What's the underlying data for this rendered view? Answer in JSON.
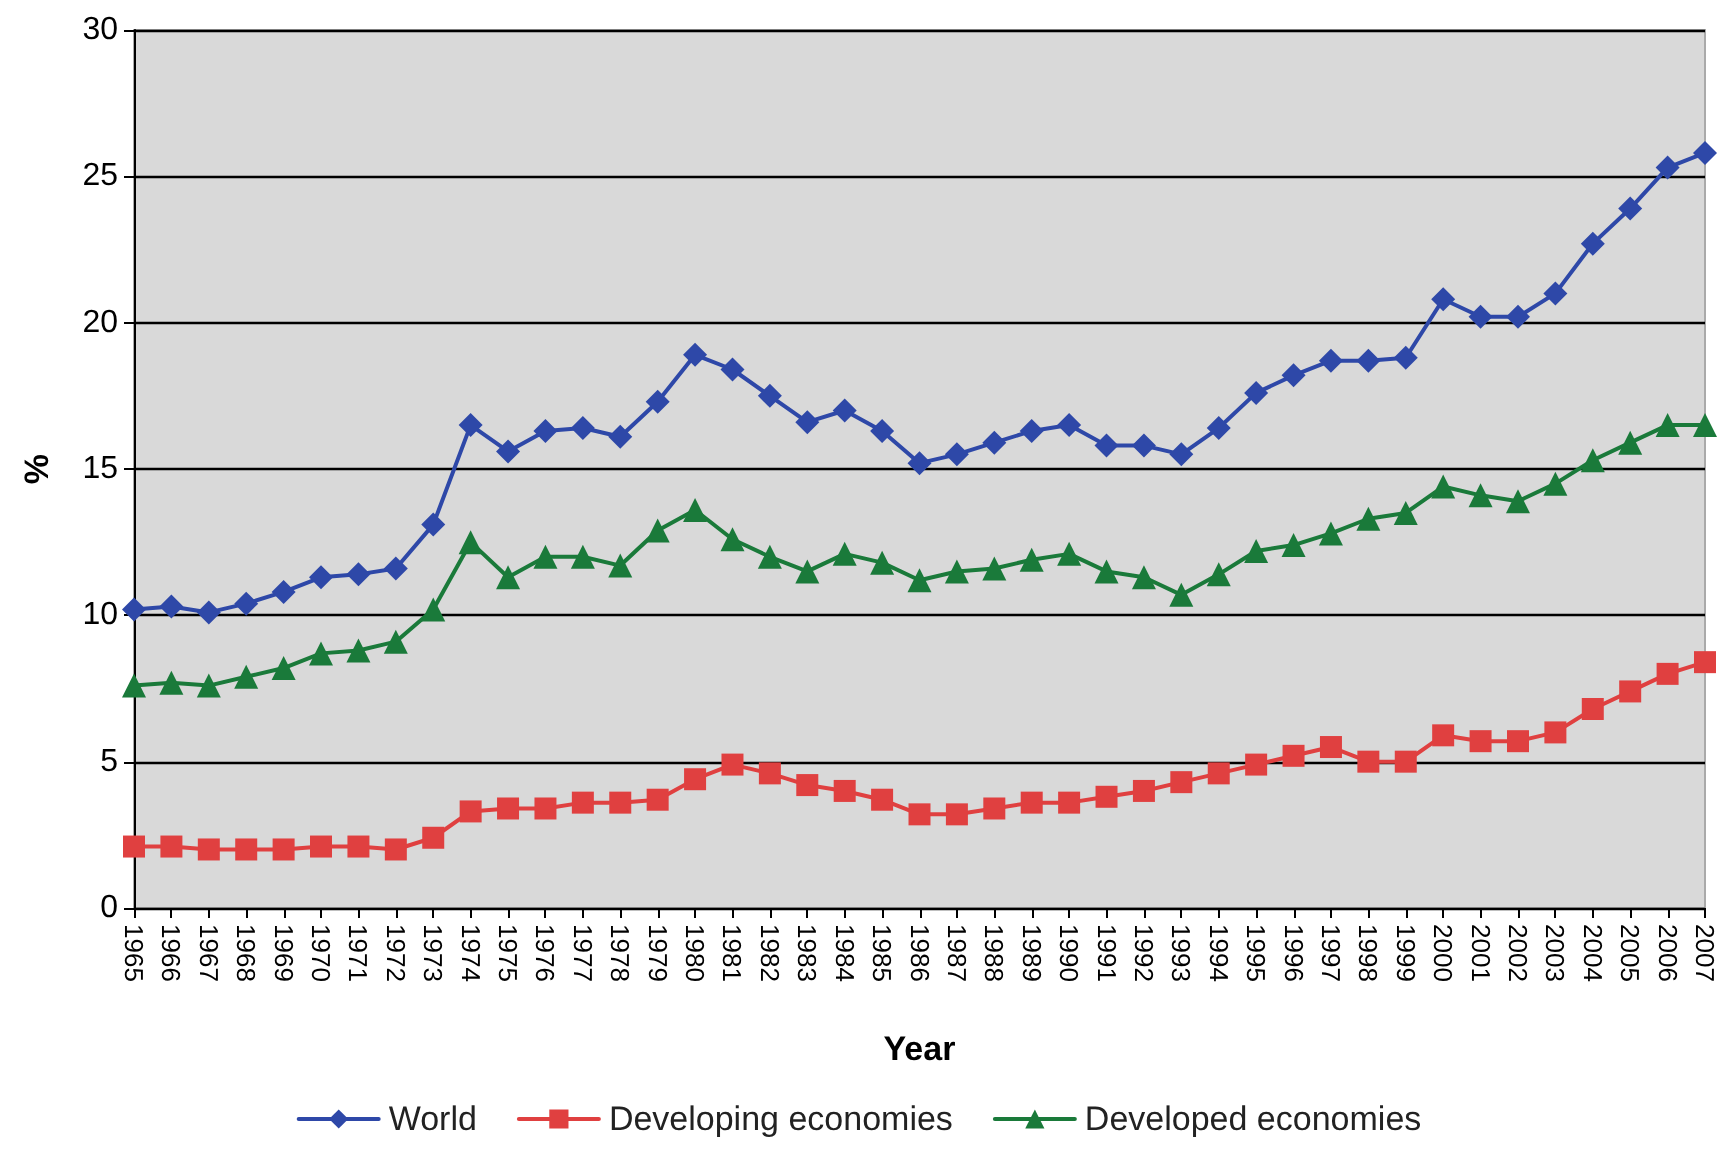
{
  "chart_data": {
    "type": "line",
    "xlabel": "Year",
    "ylabel": "%",
    "categories": [
      "1965",
      "1966",
      "1967",
      "1968",
      "1969",
      "1970",
      "1971",
      "1972",
      "1973",
      "1974",
      "1975",
      "1976",
      "1977",
      "1978",
      "1979",
      "1980",
      "1981",
      "1982",
      "1983",
      "1984",
      "1985",
      "1986",
      "1987",
      "1988",
      "1989",
      "1990",
      "1991",
      "1992",
      "1993",
      "1994",
      "1995",
      "1996",
      "1997",
      "1998",
      "1999",
      "2000",
      "2001",
      "2002",
      "2003",
      "2004",
      "2005",
      "2006",
      "2007"
    ],
    "series": [
      {
        "name": "World",
        "color": "#2e48a8",
        "marker": "diamond",
        "values": [
          10.2,
          10.3,
          10.1,
          10.4,
          10.8,
          11.3,
          11.4,
          11.6,
          13.1,
          16.5,
          15.6,
          16.3,
          16.4,
          16.1,
          17.3,
          18.9,
          18.4,
          17.5,
          16.6,
          17.0,
          16.3,
          15.2,
          15.5,
          15.9,
          16.3,
          16.5,
          15.8,
          15.8,
          15.5,
          16.4,
          17.6,
          18.2,
          18.7,
          18.7,
          18.8,
          20.8,
          20.2,
          20.2,
          21.0,
          22.7,
          23.9,
          25.3,
          25.8
        ]
      },
      {
        "name": "Developing economies",
        "color": "#e04040",
        "marker": "square",
        "values": [
          2.1,
          2.1,
          2.0,
          2.0,
          2.0,
          2.1,
          2.1,
          2.0,
          2.4,
          3.3,
          3.4,
          3.4,
          3.6,
          3.6,
          3.7,
          4.4,
          4.9,
          4.6,
          4.2,
          4.0,
          3.7,
          3.2,
          3.2,
          3.4,
          3.6,
          3.6,
          3.8,
          4.0,
          4.3,
          4.6,
          4.9,
          5.2,
          5.5,
          5.0,
          5.0,
          5.9,
          5.7,
          5.7,
          6.0,
          6.8,
          7.4,
          8.0,
          8.4
        ]
      },
      {
        "name": "Developed economies",
        "color": "#1a7a3a",
        "marker": "triangle",
        "values": [
          7.6,
          7.7,
          7.6,
          7.9,
          8.2,
          8.7,
          8.8,
          9.1,
          10.2,
          12.5,
          11.3,
          12.0,
          12.0,
          11.7,
          12.9,
          13.6,
          12.6,
          12.0,
          11.5,
          12.1,
          11.8,
          11.2,
          11.5,
          11.6,
          11.9,
          12.1,
          11.5,
          11.3,
          10.7,
          11.4,
          12.2,
          12.4,
          12.8,
          13.3,
          13.5,
          14.4,
          14.1,
          13.9,
          14.5,
          15.3,
          15.9,
          16.5,
          16.5
        ]
      }
    ],
    "ylim": [
      0,
      30
    ],
    "yticks": [
      0,
      5,
      10,
      15,
      20,
      25,
      30
    ],
    "grid": "y",
    "legend": "bottom",
    "line_style": "solid"
  }
}
